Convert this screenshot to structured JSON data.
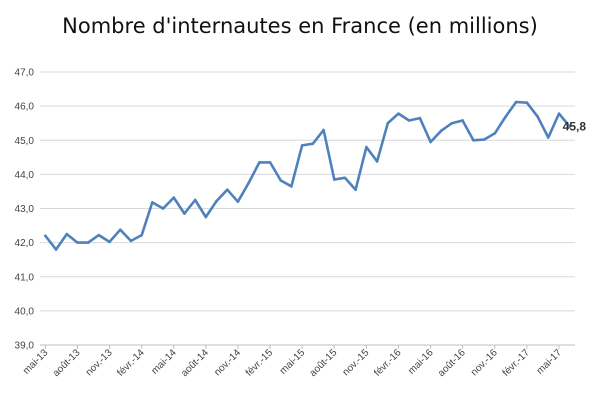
{
  "chart_data": {
    "type": "line",
    "title": "Nombre d'internautes en France (en millions)",
    "xlabel": "",
    "ylabel": "",
    "ylim": [
      39.0,
      47.0
    ],
    "yticks": [
      39.0,
      40.0,
      41.0,
      42.0,
      43.0,
      44.0,
      45.0,
      46.0,
      47.0
    ],
    "ytick_labels": [
      "39,0",
      "40,0",
      "41,0",
      "42,0",
      "43,0",
      "44,0",
      "45,0",
      "46,0",
      "47,0"
    ],
    "grid": true,
    "x": [
      "mai-13",
      "juin-13",
      "juil.-13",
      "août-13",
      "sept.-13",
      "oct.-13",
      "nov.-13",
      "déc.-13",
      "janv.-14",
      "févr.-14",
      "mars-14",
      "avr.-14",
      "mai-14",
      "juin-14",
      "juil.-14",
      "août-14",
      "sept.-14",
      "oct.-14",
      "nov.-14",
      "déc.-14",
      "janv.-15",
      "févr.-15",
      "mars-15",
      "avr.-15",
      "mai-15",
      "juin-15",
      "juil.-15",
      "août-15",
      "sept.-15",
      "oct.-15",
      "nov.-15",
      "déc.-15",
      "janv.-16",
      "févr.-16",
      "mars-16",
      "avr.-16",
      "mai-16",
      "juin-16",
      "juil.-16",
      "août-16",
      "sept.-16",
      "oct.-16",
      "nov.-16",
      "déc.-16",
      "janv.-17",
      "févr.-17",
      "mars-17",
      "avr.-17",
      "mai-17",
      "juin-17"
    ],
    "x_tick_labels": [
      "mai-13",
      "août-13",
      "nov.-13",
      "févr.-14",
      "mai-14",
      "août-14",
      "nov.-14",
      "févr.-15",
      "mai-15",
      "août-15",
      "nov.-15",
      "févr.-16",
      "mai-16",
      "août-16",
      "nov.-16",
      "févr.-17",
      "mai-17"
    ],
    "series": [
      {
        "name": "",
        "color": "#4f81bd",
        "values": [
          42.2,
          41.8,
          42.25,
          42.0,
          42.0,
          42.22,
          42.02,
          42.38,
          42.05,
          42.22,
          43.18,
          43.0,
          43.32,
          42.85,
          43.25,
          42.75,
          43.22,
          43.55,
          43.2,
          43.75,
          44.35,
          44.35,
          43.82,
          43.65,
          44.85,
          44.9,
          45.3,
          43.85,
          43.9,
          43.55,
          44.8,
          44.38,
          45.5,
          45.78,
          45.58,
          45.65,
          44.95,
          45.28,
          45.5,
          45.58,
          45.0,
          45.02,
          45.2,
          45.68,
          46.12,
          46.1,
          45.7,
          45.08,
          45.78,
          45.4
        ]
      }
    ],
    "annotations": [
      {
        "text": "45,8"
      }
    ]
  }
}
